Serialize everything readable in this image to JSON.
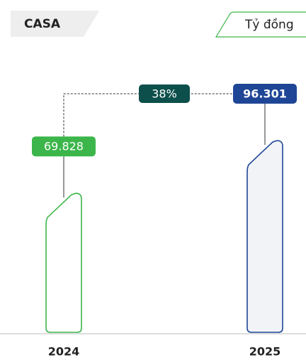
{
  "chart_data": {
    "type": "bar",
    "title": "CASA",
    "unit": "Tỷ đồng",
    "categories": [
      "2024",
      "2025"
    ],
    "values": [
      69828,
      96301
    ],
    "value_labels": [
      "69.828",
      "96.301"
    ],
    "colors": [
      "#3cb64b",
      "#1f4696"
    ],
    "fills": [
      "#ffffff",
      "#f1f3f7"
    ],
    "annotation": "38%",
    "annotation_color": "#0d4f4b"
  }
}
